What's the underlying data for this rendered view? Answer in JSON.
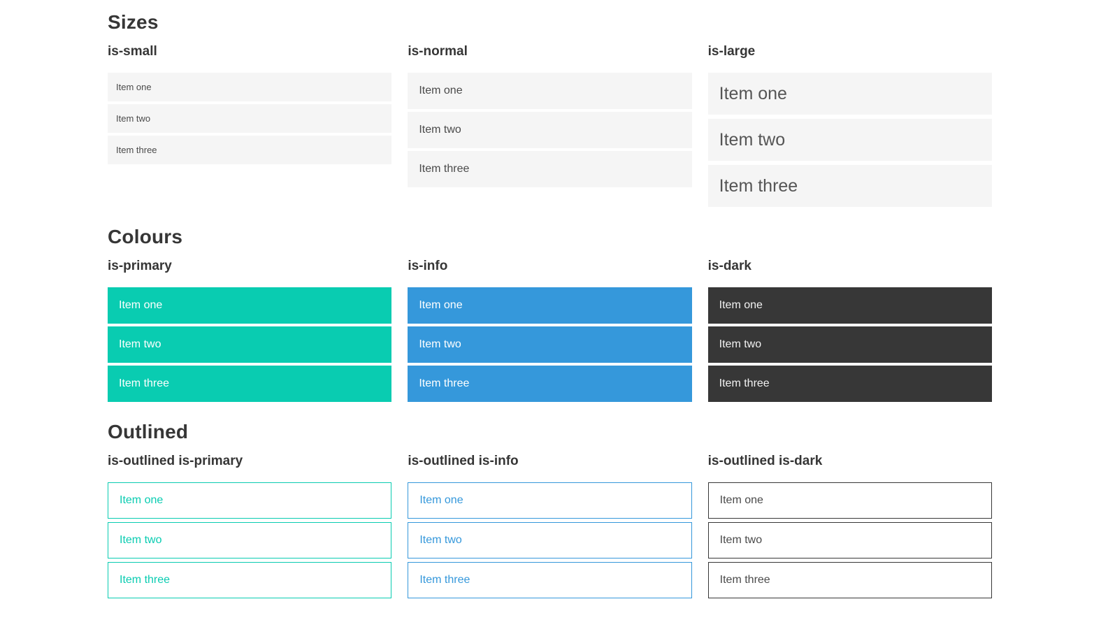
{
  "colors": {
    "primary": "#09ccb1",
    "info": "#3598db",
    "dark": "#373737",
    "light": "#f5f5f5",
    "heading": "#363636",
    "item_text": "#4a4a4a"
  },
  "sections": [
    {
      "title": "Sizes",
      "groups": [
        {
          "label": "is-small",
          "items": [
            "Item one",
            "Item two",
            "Item three"
          ]
        },
        {
          "label": "is-normal",
          "items": [
            "Item one",
            "Item two",
            "Item three"
          ]
        },
        {
          "label": "is-large",
          "items": [
            "Item one",
            "Item two",
            "Item three"
          ]
        }
      ]
    },
    {
      "title": "Colours",
      "groups": [
        {
          "label": "is-primary",
          "items": [
            "Item one",
            "Item two",
            "Item three"
          ]
        },
        {
          "label": "is-info",
          "items": [
            "Item one",
            "Item two",
            "Item three"
          ]
        },
        {
          "label": "is-dark",
          "items": [
            "Item one",
            "Item two",
            "Item three"
          ]
        }
      ]
    },
    {
      "title": "Outlined",
      "groups": [
        {
          "label": "is-outlined is-primary",
          "items": [
            "Item one",
            "Item two",
            "Item three"
          ]
        },
        {
          "label": "is-outlined is-info",
          "items": [
            "Item one",
            "Item two",
            "Item three"
          ]
        },
        {
          "label": "is-outlined is-dark",
          "items": [
            "Item one",
            "Item two",
            "Item three"
          ]
        }
      ]
    }
  ]
}
